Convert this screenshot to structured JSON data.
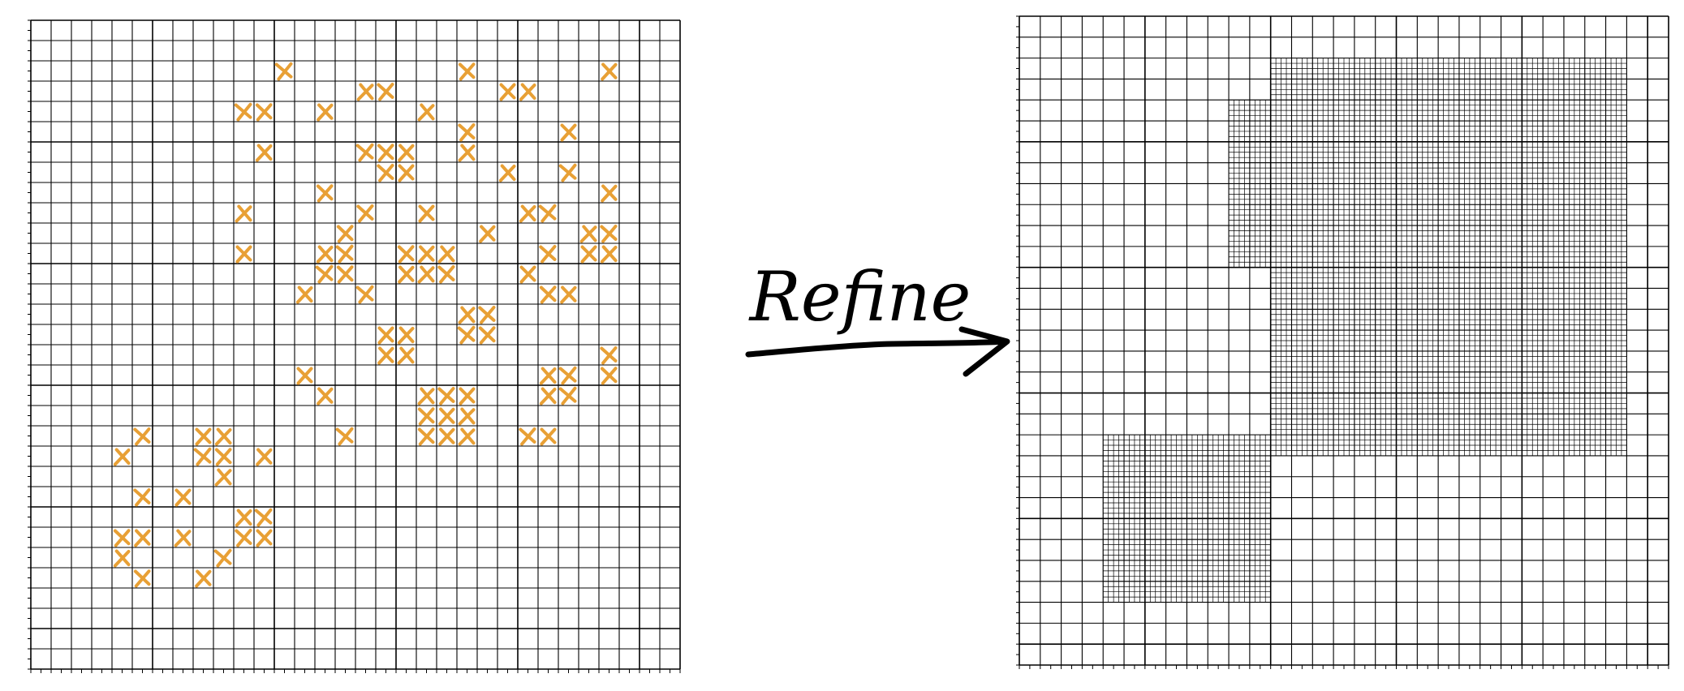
{
  "figure": {
    "arrow_label": "Refine",
    "colors": {
      "grid": "#000000",
      "marker": "#e8a035",
      "arrow": "#000000",
      "background": "#ffffff"
    },
    "left_panel": {
      "grid_cells": 32,
      "marker_shape": "x-mark",
      "markers": [
        [
          12,
          2
        ],
        [
          21,
          2
        ],
        [
          28,
          2
        ],
        [
          16,
          3
        ],
        [
          17,
          3
        ],
        [
          23,
          3
        ],
        [
          24,
          3
        ],
        [
          10,
          4
        ],
        [
          11,
          4
        ],
        [
          14,
          4
        ],
        [
          19,
          4
        ],
        [
          21,
          5
        ],
        [
          26,
          5
        ],
        [
          11,
          6
        ],
        [
          16,
          6
        ],
        [
          17,
          6
        ],
        [
          18,
          6
        ],
        [
          21,
          6
        ],
        [
          17,
          7
        ],
        [
          18,
          7
        ],
        [
          23,
          7
        ],
        [
          26,
          7
        ],
        [
          14,
          8
        ],
        [
          28,
          8
        ],
        [
          10,
          9
        ],
        [
          16,
          9
        ],
        [
          19,
          9
        ],
        [
          24,
          9
        ],
        [
          25,
          9
        ],
        [
          15,
          10
        ],
        [
          22,
          10
        ],
        [
          27,
          10
        ],
        [
          28,
          10
        ],
        [
          10,
          11
        ],
        [
          14,
          11
        ],
        [
          15,
          11
        ],
        [
          18,
          11
        ],
        [
          19,
          11
        ],
        [
          20,
          11
        ],
        [
          25,
          11
        ],
        [
          27,
          11
        ],
        [
          28,
          11
        ],
        [
          14,
          12
        ],
        [
          15,
          12
        ],
        [
          18,
          12
        ],
        [
          19,
          12
        ],
        [
          20,
          12
        ],
        [
          24,
          12
        ],
        [
          13,
          13
        ],
        [
          16,
          13
        ],
        [
          25,
          13
        ],
        [
          26,
          13
        ],
        [
          21,
          14
        ],
        [
          22,
          14
        ],
        [
          17,
          15
        ],
        [
          18,
          15
        ],
        [
          21,
          15
        ],
        [
          22,
          15
        ],
        [
          17,
          16
        ],
        [
          18,
          16
        ],
        [
          28,
          16
        ],
        [
          13,
          17
        ],
        [
          25,
          17
        ],
        [
          26,
          17
        ],
        [
          28,
          17
        ],
        [
          14,
          18
        ],
        [
          19,
          18
        ],
        [
          20,
          18
        ],
        [
          21,
          18
        ],
        [
          25,
          18
        ],
        [
          26,
          18
        ],
        [
          19,
          19
        ],
        [
          20,
          19
        ],
        [
          21,
          19
        ],
        [
          5,
          20
        ],
        [
          8,
          20
        ],
        [
          9,
          20
        ],
        [
          15,
          20
        ],
        [
          19,
          20
        ],
        [
          20,
          20
        ],
        [
          21,
          20
        ],
        [
          24,
          20
        ],
        [
          25,
          20
        ],
        [
          4,
          21
        ],
        [
          8,
          21
        ],
        [
          9,
          21
        ],
        [
          11,
          21
        ],
        [
          9,
          22
        ],
        [
          5,
          23
        ],
        [
          7,
          23
        ],
        [
          10,
          24
        ],
        [
          11,
          24
        ],
        [
          4,
          25
        ],
        [
          5,
          25
        ],
        [
          7,
          25
        ],
        [
          10,
          25
        ],
        [
          11,
          25
        ],
        [
          4,
          26
        ],
        [
          9,
          26
        ],
        [
          5,
          27
        ],
        [
          8,
          27
        ]
      ]
    },
    "right_panel": {
      "grid_cells": 31,
      "refine_factor": 4,
      "refined_regions": [
        {
          "x0": 12,
          "y0": 2,
          "x1": 29,
          "y1": 21
        },
        {
          "x0": 10,
          "y0": 4,
          "x1": 12,
          "y1": 12
        },
        {
          "x0": 4,
          "y0": 20,
          "x1": 12,
          "y1": 28
        }
      ]
    }
  }
}
